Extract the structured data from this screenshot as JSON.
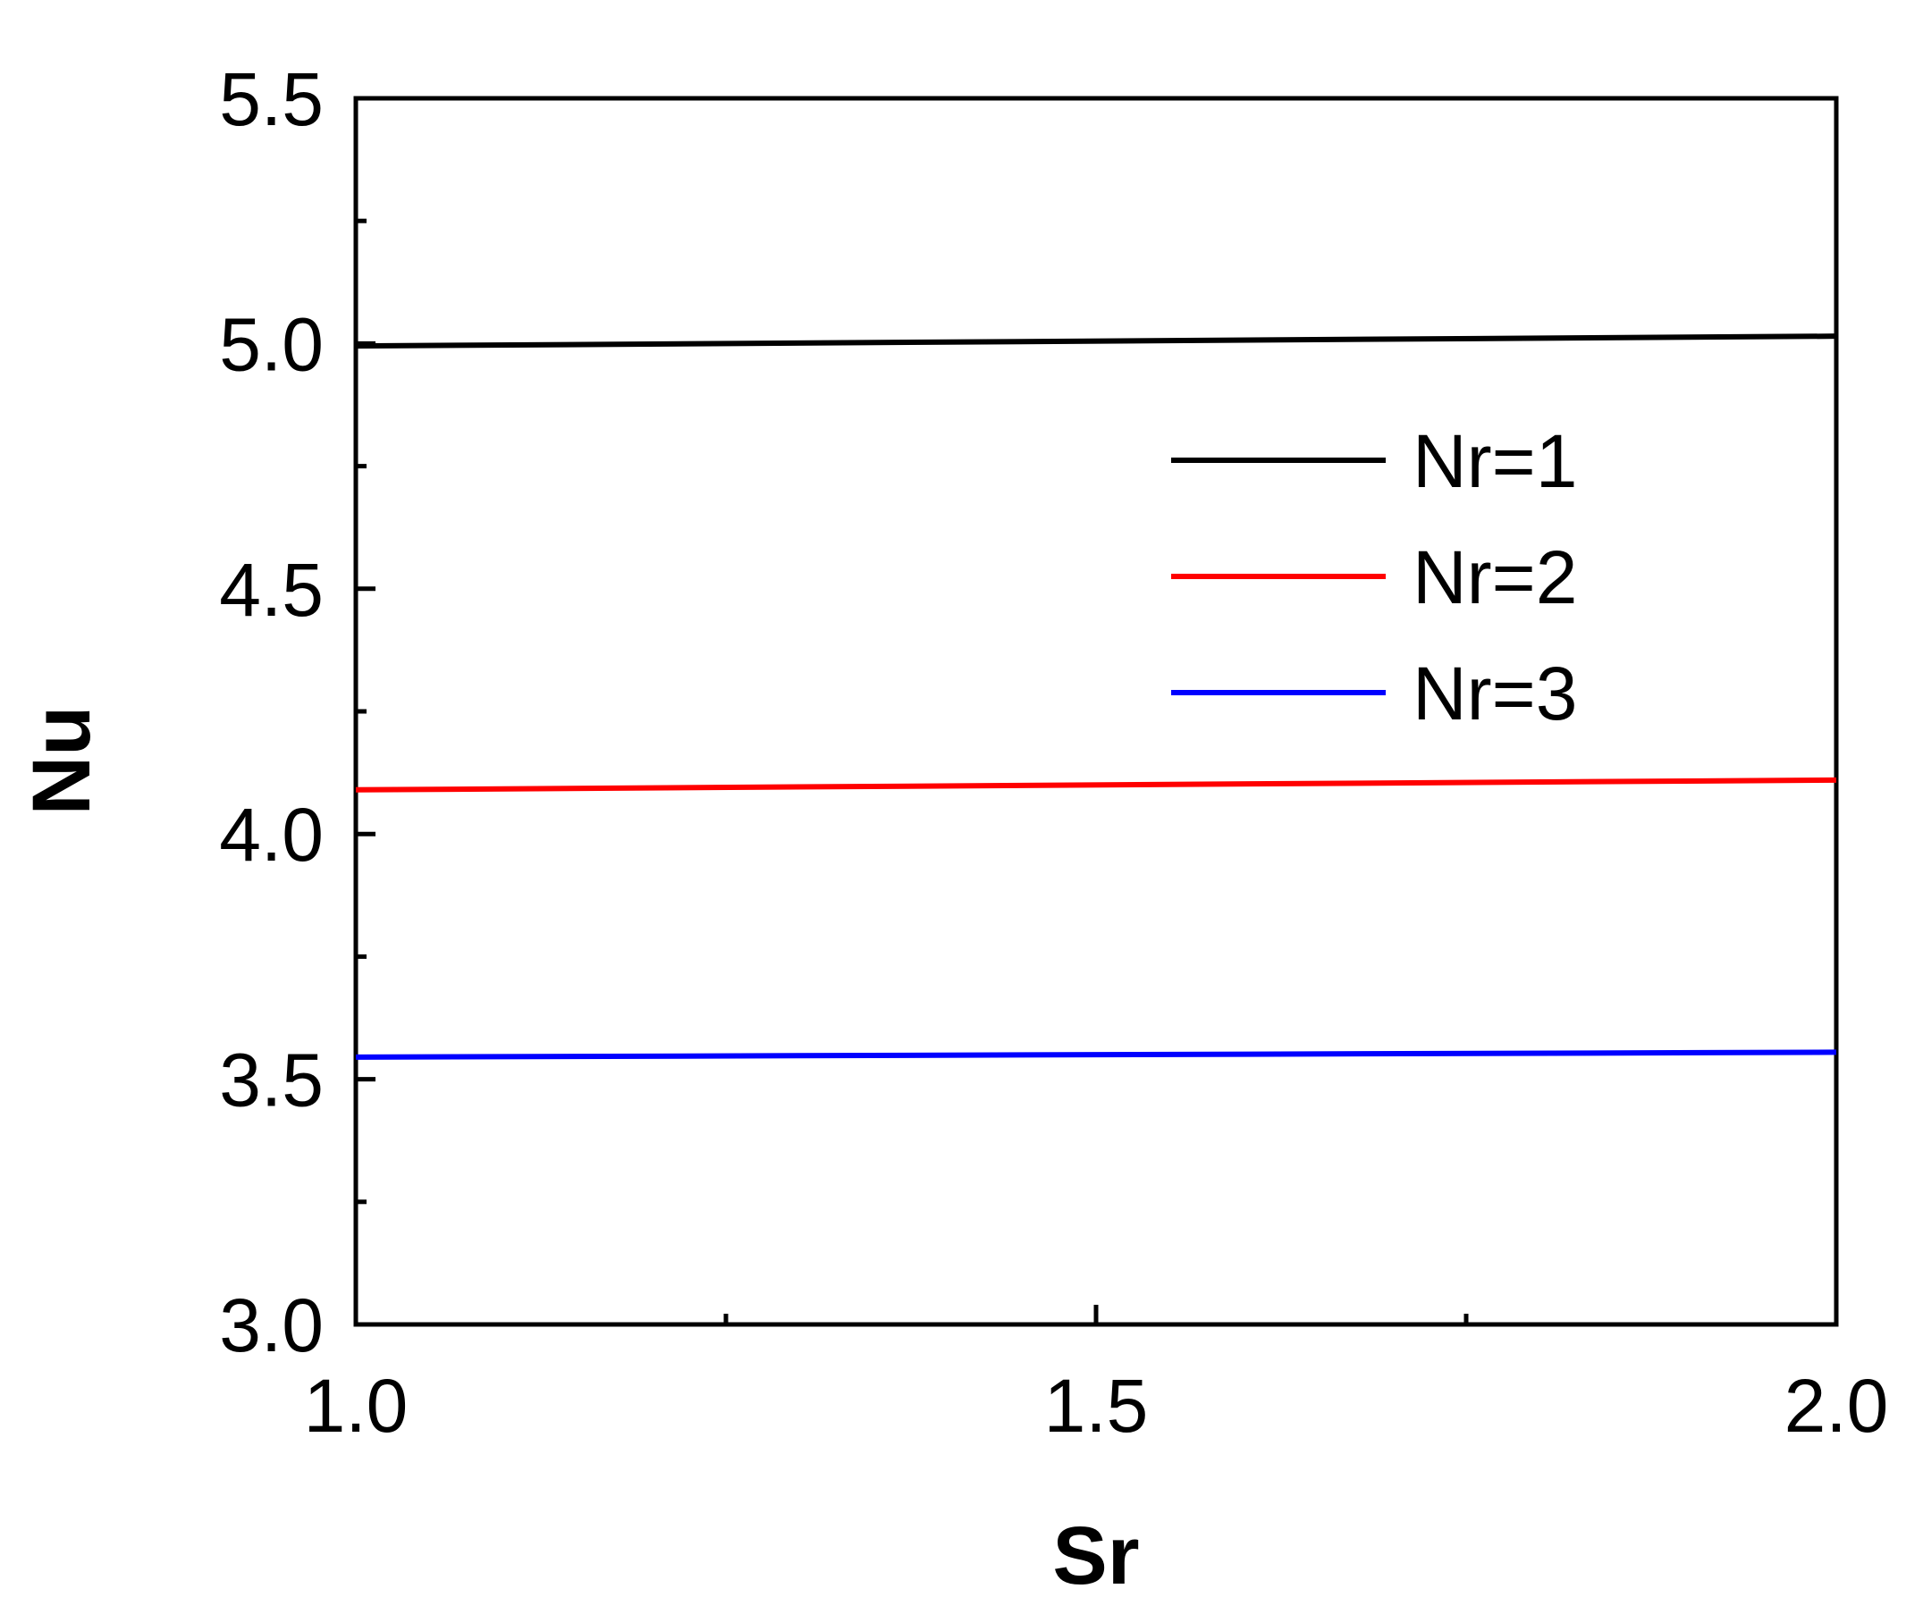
{
  "chart_data": {
    "type": "line",
    "xlabel": "Sr",
    "ylabel": "Nu",
    "xlim": [
      1.0,
      2.0
    ],
    "ylim": [
      3.0,
      5.5
    ],
    "x_ticks": [
      "1.0",
      "1.5",
      "2.0"
    ],
    "x_tick_values": [
      1.0,
      1.5,
      2.0
    ],
    "x_minor_tick_values": [
      1.25,
      1.75
    ],
    "y_ticks": [
      "3.0",
      "3.5",
      "4.0",
      "4.5",
      "5.0",
      "5.5"
    ],
    "y_tick_values": [
      3.0,
      3.5,
      4.0,
      4.5,
      5.0,
      5.5
    ],
    "y_minor_tick_values": [
      3.25,
      3.75,
      4.25,
      4.75,
      5.25
    ],
    "grid": false,
    "legend_position": "upper-right",
    "series": [
      {
        "name": "Nr=1",
        "color": "#000000",
        "x": [
          1.0,
          2.0
        ],
        "y": [
          4.995,
          5.015
        ]
      },
      {
        "name": "Nr=2",
        "color": "#ff0000",
        "x": [
          1.0,
          2.0
        ],
        "y": [
          4.09,
          4.11
        ]
      },
      {
        "name": "Nr=3",
        "color": "#0000ff",
        "x": [
          1.0,
          2.0
        ],
        "y": [
          3.545,
          3.555
        ]
      }
    ]
  }
}
